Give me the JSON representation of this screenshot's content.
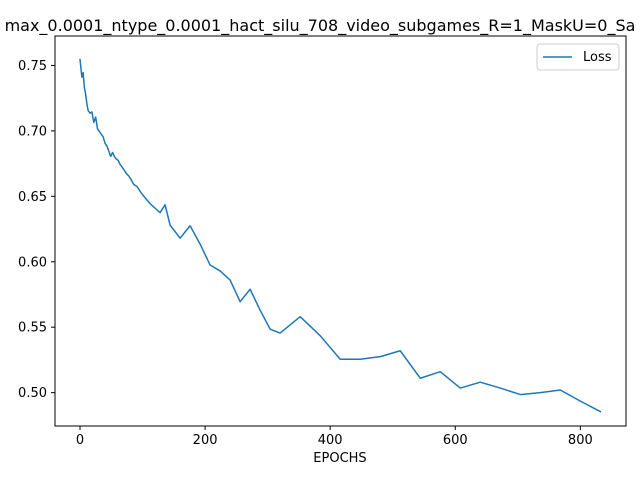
{
  "chart_data": {
    "type": "line",
    "title": "max_0.0001_ntype_0.0001_hact_silu_708_video_subgames_R=1_MaskU=0_Sa",
    "xlabel": "EPOCHS",
    "ylabel": "",
    "xlim": [
      -40,
      873
    ],
    "ylim": [
      0.4745,
      0.7725
    ],
    "xticks": [
      0,
      200,
      400,
      600,
      800
    ],
    "yticks": [
      0.5,
      0.55,
      0.6,
      0.65,
      0.7,
      0.75
    ],
    "xtick_labels": [
      "0",
      "200",
      "400",
      "600",
      "800"
    ],
    "ytick_labels": [
      "0.50",
      "0.55",
      "0.60",
      "0.65",
      "0.70",
      "0.75"
    ],
    "grid": false,
    "legend_position": "top-right",
    "series": [
      {
        "name": "Loss",
        "color": "#1f77b4",
        "x": [
          0,
          3,
          5,
          7,
          9,
          11,
          13,
          16,
          19,
          22,
          25,
          28,
          31,
          34,
          37,
          40,
          43,
          46,
          49,
          52,
          55,
          58,
          61,
          64,
          67,
          70,
          74,
          78,
          82,
          86,
          91,
          98,
          103,
          112,
          121,
          128,
          136,
          144,
          160,
          176,
          192,
          208,
          224,
          240,
          256,
          272,
          288,
          304,
          320,
          352,
          384,
          416,
          448,
          480,
          512,
          544,
          576,
          608,
          640,
          672,
          704,
          736,
          768,
          800,
          832
        ],
        "y": [
          0.7545,
          0.741,
          0.7445,
          0.733,
          0.728,
          0.7205,
          0.7155,
          0.7135,
          0.7145,
          0.7065,
          0.7105,
          0.7015,
          0.6995,
          0.6975,
          0.6955,
          0.6905,
          0.6885,
          0.6845,
          0.6805,
          0.6835,
          0.6805,
          0.6785,
          0.6775,
          0.6745,
          0.6725,
          0.6705,
          0.6675,
          0.6655,
          0.6625,
          0.659,
          0.6575,
          0.6525,
          0.6495,
          0.6445,
          0.6405,
          0.6375,
          0.6435,
          0.628,
          0.618,
          0.6275,
          0.6135,
          0.5975,
          0.593,
          0.586,
          0.5695,
          0.579,
          0.563,
          0.5485,
          0.5455,
          0.558,
          0.5435,
          0.5255,
          0.5255,
          0.5275,
          0.532,
          0.511,
          0.516,
          0.5035,
          0.508,
          0.5035,
          0.4985,
          0.5,
          0.502,
          0.4935,
          0.4855
        ]
      }
    ]
  }
}
